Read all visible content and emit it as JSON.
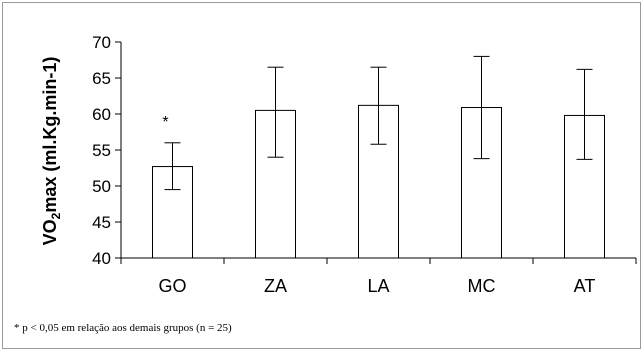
{
  "chart_data": {
    "type": "bar",
    "categories": [
      "GO",
      "ZA",
      "LA",
      "MC",
      "AT"
    ],
    "values": [
      52.7,
      60.5,
      61.2,
      60.9,
      59.8
    ],
    "error_upper": [
      56.0,
      66.5,
      66.5,
      68.0,
      66.2
    ],
    "error_lower": [
      49.5,
      54.0,
      55.8,
      53.8,
      53.7
    ],
    "ylabel_pre": "VO",
    "ylabel_sub": "2",
    "ylabel_post": "max (ml.Kg.min-1)",
    "ylim": [
      40,
      70
    ],
    "yticks": [
      "40",
      "45",
      "50",
      "55",
      "60",
      "65",
      "70"
    ],
    "annotations": [
      {
        "category": "GO",
        "text": "*"
      }
    ],
    "footnote": "* p < 0,05 em relação aos demais grupos (n = 25)",
    "bar_fill": "#ffffff",
    "bar_stroke": "#000000"
  }
}
